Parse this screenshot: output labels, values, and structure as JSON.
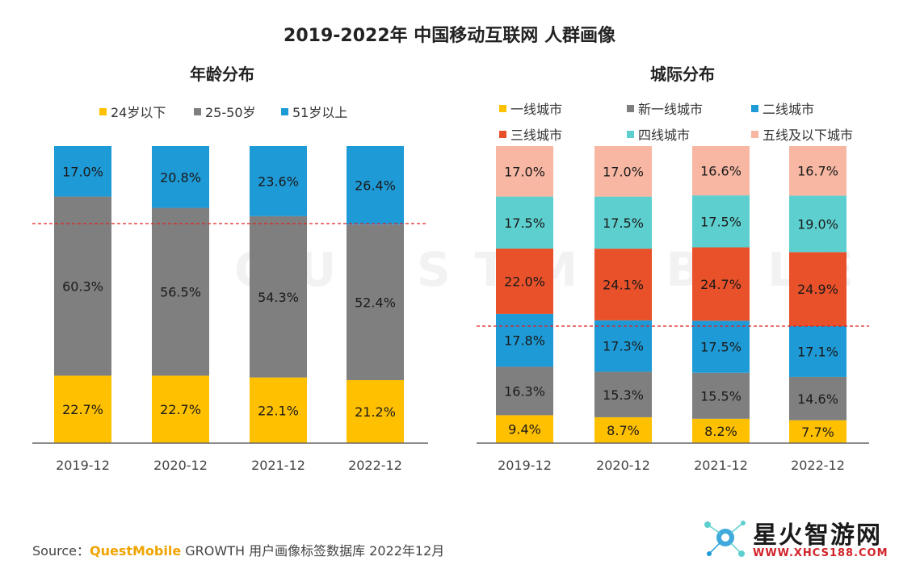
{
  "title": "2019-2022年 中国移动互联网 人群画像",
  "source": {
    "prefix": "Source：",
    "brand": "QuestMobile",
    "text": "GROWTH 用户画像标签数据库 2022年12月"
  },
  "watermark": {
    "name": "星火智游网",
    "url": "WWW.XHCS188.COM",
    "background_text": "QUESTMOBILE"
  },
  "colors": {
    "yellow": "#FFC000",
    "gray": "#7F7F7F",
    "blue": "#1E9AD6",
    "orange": "#E8512A",
    "teal": "#5ECFCF",
    "pink": "#F7B7A3",
    "dashed_line": "#E02020",
    "axis": "#666666"
  },
  "chart_data": [
    {
      "type": "bar",
      "stacked": true,
      "title": "年龄分布",
      "categories": [
        "2019-12",
        "2020-12",
        "2021-12",
        "2022-12"
      ],
      "series": [
        {
          "name": "24岁以下",
          "color": "#FFC000",
          "values": [
            22.7,
            22.7,
            22.1,
            21.2
          ],
          "labels": [
            "22.7%",
            "22.7%",
            "22.1%",
            "21.2%"
          ]
        },
        {
          "name": "25-50岁",
          "color": "#7F7F7F",
          "values": [
            60.3,
            56.5,
            54.3,
            52.4
          ],
          "labels": [
            "60.3%",
            "56.5%",
            "54.3%",
            "52.4%"
          ]
        },
        {
          "name": "51岁以上",
          "color": "#1E9AD6",
          "values": [
            17.0,
            20.8,
            23.6,
            26.4
          ],
          "labels": [
            "17.0%",
            "20.8%",
            "23.6%",
            "26.4%"
          ]
        }
      ],
      "ylim": [
        0,
        100
      ],
      "reference_line": 74.0,
      "legend_position": "top"
    },
    {
      "type": "bar",
      "stacked": true,
      "title": "城际分布",
      "categories": [
        "2019-12",
        "2020-12",
        "2021-12",
        "2022-12"
      ],
      "series": [
        {
          "name": "一线城市",
          "color": "#FFC000",
          "values": [
            9.4,
            8.7,
            8.2,
            7.7
          ],
          "labels": [
            "9.4%",
            "8.7%",
            "8.2%",
            "7.7%"
          ]
        },
        {
          "name": "新一线城市",
          "color": "#7F7F7F",
          "values": [
            16.3,
            15.3,
            15.5,
            14.6
          ],
          "labels": [
            "16.3%",
            "15.3%",
            "15.5%",
            "14.6%"
          ]
        },
        {
          "name": "二线城市",
          "color": "#1E9AD6",
          "values": [
            17.8,
            17.3,
            17.5,
            17.1
          ],
          "labels": [
            "17.8%",
            "17.3%",
            "17.5%",
            "17.1%"
          ]
        },
        {
          "name": "三线城市",
          "color": "#E8512A",
          "values": [
            22.0,
            24.1,
            24.7,
            24.9
          ],
          "labels": [
            "22.0%",
            "24.1%",
            "24.7%",
            "24.9%"
          ]
        },
        {
          "name": "四线城市",
          "color": "#5ECFCF",
          "values": [
            17.5,
            17.5,
            17.5,
            19.0
          ],
          "labels": [
            "17.5%",
            "17.5%",
            "17.5%",
            "19.0%"
          ]
        },
        {
          "name": "五线及以下城市",
          "color": "#F7B7A3",
          "values": [
            17.0,
            17.0,
            16.6,
            16.7
          ],
          "labels": [
            "17.0%",
            "17.0%",
            "16.6%",
            "16.7%"
          ]
        }
      ],
      "ylim": [
        0,
        100
      ],
      "reference_line": 39.0,
      "legend_position": "top"
    }
  ]
}
